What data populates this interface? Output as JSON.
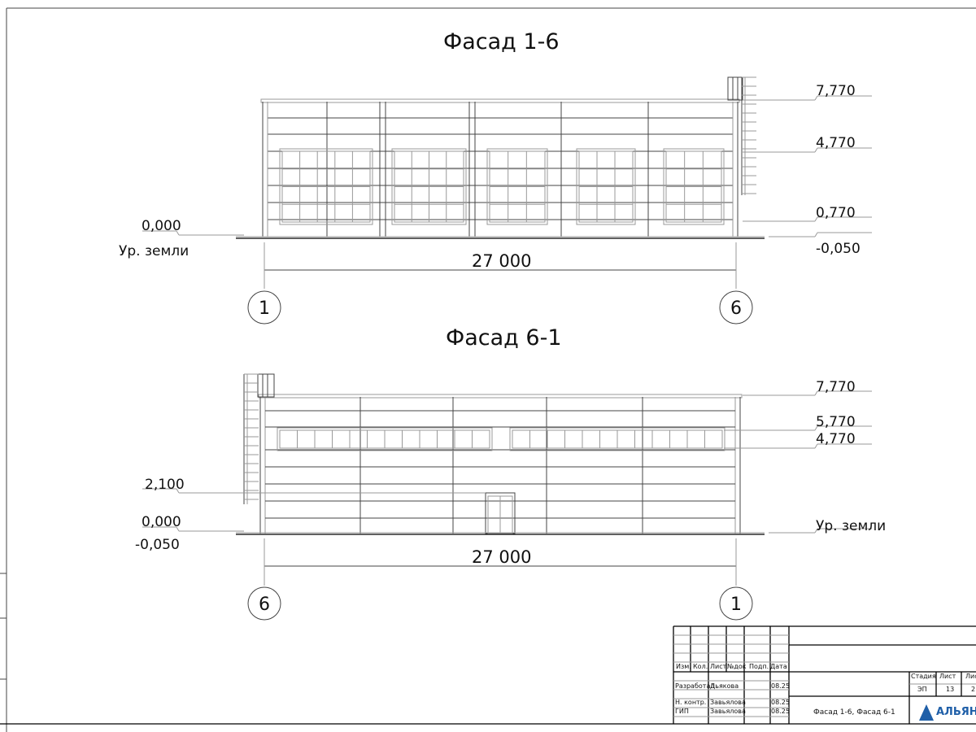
{
  "facade_top": {
    "title": "Фасад 1-6",
    "levels": {
      "top": "7,770",
      "mid": "4,770",
      "low": "0,770",
      "zero": "0,000",
      "ground_label": "Ур. земли",
      "minus": "-0,050"
    },
    "dimension": "27 000",
    "axis_left": "1",
    "axis_right": "6"
  },
  "facade_bottom": {
    "title": "Фасад 6-1",
    "levels": {
      "top": "7,770",
      "upper": "5,770",
      "mid": "4,770",
      "door": "2,100",
      "zero": "0,000",
      "minus": "-0,050",
      "ground_label": "Ур. земли"
    },
    "dimension": "27 000",
    "axis_left": "6",
    "axis_right": "1"
  },
  "title_block": {
    "headers": [
      "Изм.",
      "Кол.",
      "Лист",
      "№док",
      "Подп.",
      "Дата"
    ],
    "rows": [
      {
        "role": "Разработал",
        "name": "Дьякова",
        "date": "08.25"
      },
      {
        "role": "Н. контр.",
        "name": "Завьялова",
        "date": "08.25"
      },
      {
        "role": "ГИП",
        "name": "Завьялова",
        "date": "08.25"
      }
    ],
    "sheet_title": "Фасад 1-6, Фасад 6-1",
    "stage_label": "Стадия",
    "sheet_label": "Лист",
    "sheets_label": "Лис",
    "stage": "ЭП",
    "sheet": "13",
    "sheets": "2",
    "company": "АЛЬЯН",
    "logo_color": "#1f5fa8"
  }
}
